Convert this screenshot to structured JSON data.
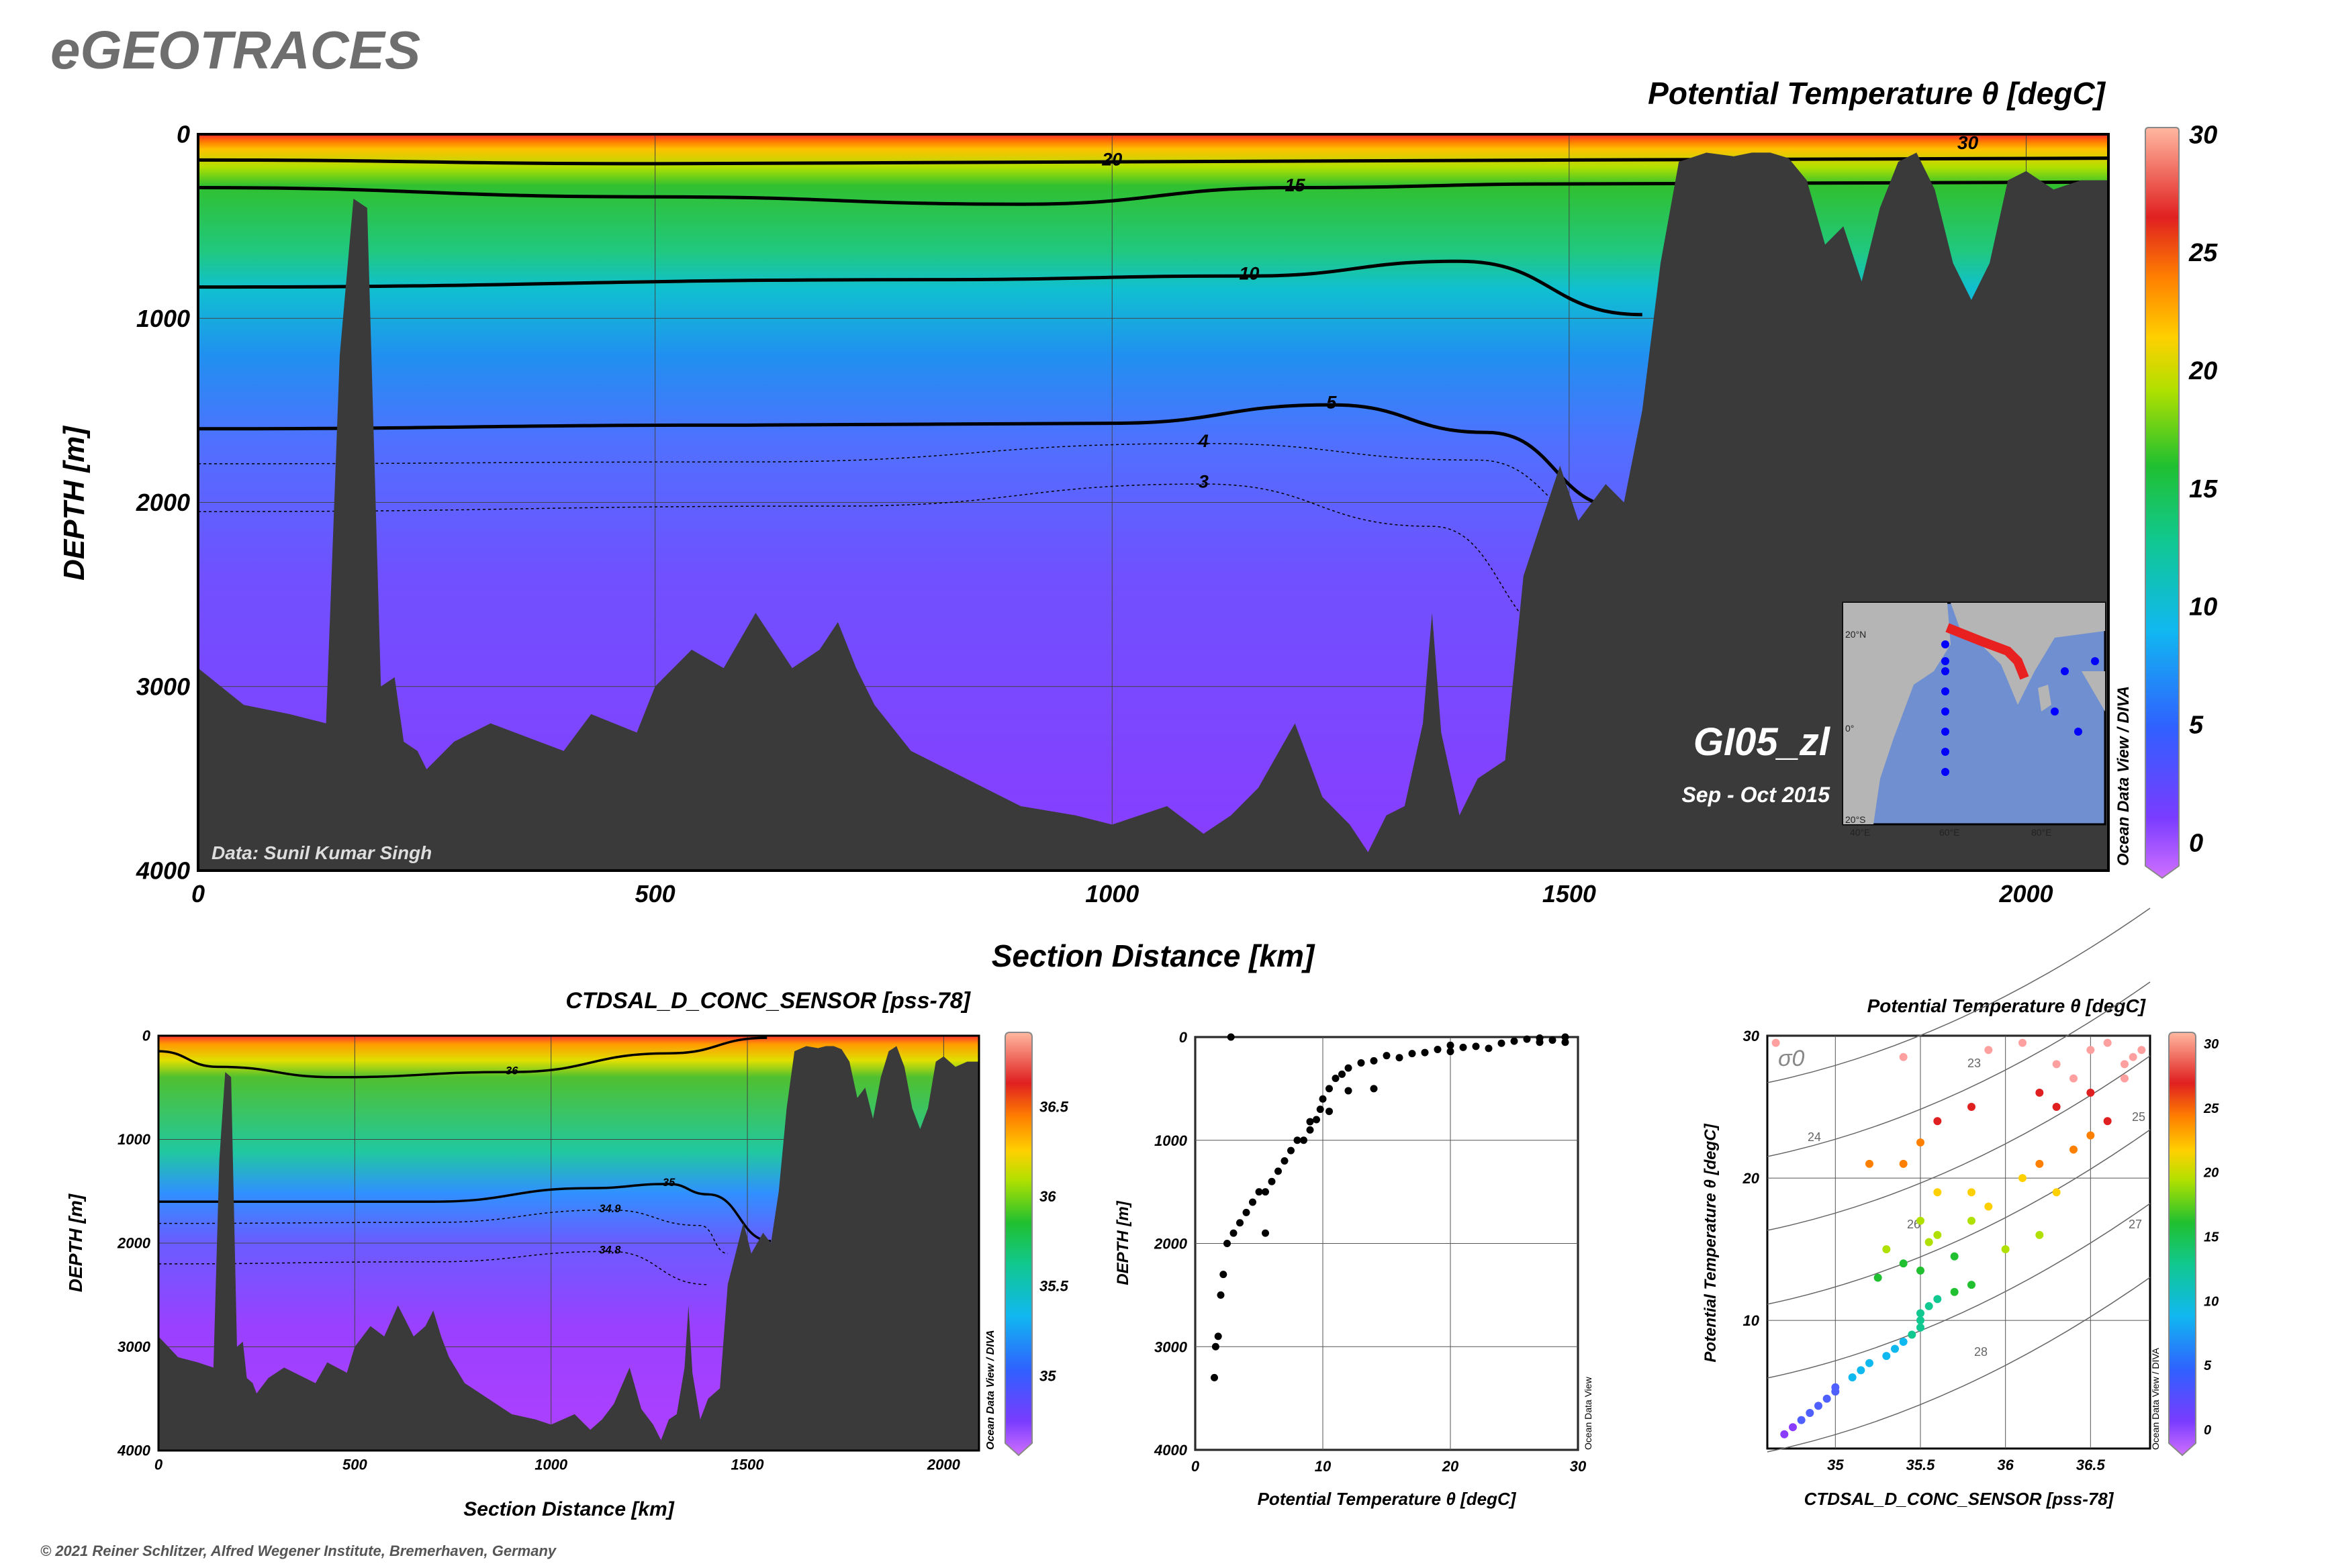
{
  "logo": "eGEOTRACES",
  "copyright": "© 2021 Reiner Schlitzer, Alfred Wegener Institute, Bremerhaven, Germany",
  "odv_credit": "Ocean Data View / DIVA",
  "odv_credit_short": "Ocean Data View",
  "colors": {
    "bathymetry": "#3a3a3a",
    "contour": "#000000",
    "grid": "#555555"
  },
  "chart_data": [
    {
      "type": "section",
      "id": "main_section",
      "title": "Potential Temperature θ [degC]",
      "xlabel": "Section Distance [km]",
      "ylabel": "DEPTH [m]",
      "xlim": [
        0,
        2090
      ],
      "ylim": [
        4000,
        0
      ],
      "x_ticks": [
        0,
        500,
        1000,
        1500,
        2000
      ],
      "y_ticks": [
        0,
        1000,
        2000,
        3000,
        4000
      ],
      "colorbar": {
        "range": [
          0,
          30
        ],
        "ticks": [
          0,
          5,
          10,
          15,
          20,
          25,
          30
        ]
      },
      "contour_labels": [
        "30",
        "20",
        "15",
        "10",
        "5",
        "4",
        "3"
      ],
      "cruise": "GI05_zl",
      "date": "Sep - Oct 2015",
      "data_credit": "Data: Sunil Kumar Singh",
      "map": {
        "lat_labels": [
          "20°N",
          "0°",
          "20°S"
        ],
        "lon_labels": [
          "40°E",
          "60°E",
          "80°E"
        ]
      },
      "contours": [
        {
          "label": "20",
          "depth": 150,
          "km": [
            0,
            500,
            1000,
            1500,
            2090
          ],
          "d": [
            140,
            160,
            150,
            140,
            130
          ]
        },
        {
          "label": "15",
          "km": [
            0,
            500,
            900,
            1200,
            1500,
            2090
          ],
          "d": [
            290,
            340,
            380,
            290,
            270,
            260
          ]
        },
        {
          "label": "10",
          "km": [
            0,
            800,
            1150,
            1380,
            1580
          ],
          "d": [
            830,
            790,
            770,
            690,
            980
          ]
        },
        {
          "label": "5",
          "km": [
            0,
            600,
            1000,
            1240,
            1410,
            1560
          ],
          "d": [
            1600,
            1580,
            1570,
            1470,
            1620,
            2030
          ]
        },
        {
          "label": "4",
          "km": [
            0,
            600,
            1100,
            1400,
            1550
          ],
          "d": [
            1790,
            1780,
            1680,
            1770,
            2140
          ]
        },
        {
          "label": "3",
          "km": [
            0,
            700,
            1100,
            1350,
            1500
          ],
          "d": [
            2050,
            2020,
            1900,
            2130,
            2750
          ]
        }
      ],
      "bathymetry": {
        "km": [
          0,
          50,
          100,
          140,
          155,
          170,
          185,
          200,
          215,
          225,
          240,
          250,
          260,
          280,
          320,
          400,
          430,
          480,
          500,
          540,
          575,
          610,
          650,
          680,
          700,
          720,
          740,
          780,
          820,
          860,
          900,
          960,
          1000,
          1060,
          1100,
          1130,
          1160,
          1200,
          1230,
          1260,
          1280,
          1300,
          1320,
          1340,
          1350,
          1360,
          1380,
          1400,
          1430,
          1450,
          1470,
          1490,
          1510,
          1540,
          1560,
          1580,
          1600,
          1620,
          1650,
          1680,
          1700,
          1720,
          1740,
          1760,
          1780,
          1800,
          1820,
          1840,
          1860,
          1880,
          1900,
          1920,
          1940,
          1960,
          1980,
          2000,
          2030,
          2060,
          2090
        ],
        "d": [
          2900,
          3100,
          3150,
          3200,
          1200,
          350,
          400,
          3000,
          2950,
          3300,
          3350,
          3450,
          3400,
          3300,
          3200,
          3350,
          3150,
          3250,
          3000,
          2800,
          2900,
          2600,
          2900,
          2800,
          2650,
          2900,
          3100,
          3350,
          3450,
          3550,
          3650,
          3700,
          3750,
          3650,
          3800,
          3700,
          3550,
          3200,
          3600,
          3750,
          3900,
          3700,
          3650,
          3200,
          2600,
          3250,
          3700,
          3500,
          3400,
          2400,
          2100,
          1800,
          2100,
          1900,
          2000,
          1500,
          700,
          150,
          100,
          120,
          100,
          100,
          130,
          250,
          600,
          500,
          800,
          400,
          150,
          100,
          300,
          700,
          900,
          700,
          250,
          200,
          300,
          250,
          250
        ]
      }
    },
    {
      "type": "section",
      "id": "salinity_section",
      "title": "CTDSAL_D_CONC_SENSOR [pss-78]",
      "xlabel": "Section Distance [km]",
      "ylabel": "DEPTH [m]",
      "xlim": [
        0,
        2090
      ],
      "ylim": [
        4000,
        0
      ],
      "x_ticks": [
        0,
        500,
        1000,
        1500,
        2000
      ],
      "y_ticks": [
        0,
        1000,
        2000,
        3000,
        4000
      ],
      "colorbar": {
        "range": [
          34.7,
          36.85
        ],
        "ticks": [
          35,
          35.5,
          36,
          36.5
        ]
      },
      "contour_labels": [
        "36",
        "35",
        "34.9",
        "34.8"
      ],
      "contours": [
        {
          "label": "36",
          "km": [
            0,
            150,
            450,
            900,
            1300,
            1550
          ],
          "d": [
            150,
            300,
            400,
            350,
            170,
            20
          ]
        },
        {
          "label": "35",
          "km": [
            0,
            700,
            1100,
            1300,
            1400,
            1560
          ],
          "d": [
            1600,
            1600,
            1470,
            1430,
            1530,
            1980
          ]
        },
        {
          "label": "34.9",
          "km": [
            0,
            700,
            1150,
            1380,
            1450
          ],
          "d": [
            1810,
            1800,
            1680,
            1830,
            2100
          ]
        },
        {
          "label": "34.8",
          "km": [
            0,
            700,
            1150,
            1400
          ],
          "d": [
            2200,
            2180,
            2080,
            2400
          ]
        }
      ]
    },
    {
      "type": "scatter",
      "id": "temp_profile",
      "xlabel": "Potential Temperature θ [degC]",
      "ylabel": "DEPTH [m]",
      "xlim": [
        0,
        30
      ],
      "ylim": [
        4000,
        0
      ],
      "x_ticks": [
        0,
        10,
        20,
        30
      ],
      "y_ticks": [
        0,
        1000,
        2000,
        3000,
        4000
      ],
      "points": [
        [
          2.8,
          0
        ],
        [
          29,
          0
        ],
        [
          28,
          30
        ],
        [
          27,
          50
        ],
        [
          26,
          20
        ],
        [
          25,
          40
        ],
        [
          24,
          60
        ],
        [
          22,
          90
        ],
        [
          21,
          100
        ],
        [
          20,
          80
        ],
        [
          19,
          120
        ],
        [
          18,
          150
        ],
        [
          17,
          160
        ],
        [
          16,
          200
        ],
        [
          15,
          180
        ],
        [
          14,
          230
        ],
        [
          13,
          250
        ],
        [
          12,
          300
        ],
        [
          11.5,
          360
        ],
        [
          11,
          400
        ],
        [
          10.5,
          500
        ],
        [
          10,
          600
        ],
        [
          9.8,
          700
        ],
        [
          9.5,
          800
        ],
        [
          9,
          900
        ],
        [
          8.5,
          1000
        ],
        [
          8,
          1000
        ],
        [
          7.5,
          1100
        ],
        [
          7,
          1200
        ],
        [
          6.5,
          1300
        ],
        [
          6,
          1400
        ],
        [
          5.5,
          1500
        ],
        [
          5,
          1500
        ],
        [
          4.5,
          1600
        ],
        [
          4,
          1700
        ],
        [
          3.5,
          1800
        ],
        [
          3,
          1900
        ],
        [
          2.5,
          2000
        ],
        [
          2.2,
          2300
        ],
        [
          2,
          2500
        ],
        [
          1.8,
          2900
        ],
        [
          1.6,
          3000
        ],
        [
          1.5,
          3300
        ],
        [
          20,
          140
        ],
        [
          23,
          110
        ],
        [
          27,
          10
        ],
        [
          29,
          50
        ],
        [
          14,
          500
        ],
        [
          12,
          520
        ],
        [
          10.5,
          720
        ],
        [
          9,
          820
        ],
        [
          5.5,
          1900
        ]
      ]
    },
    {
      "type": "scatter",
      "id": "ts_diagram",
      "title": "Potential Temperature θ [degC]",
      "xlabel": "CTDSAL_D_CONC_SENSOR [pss-78]",
      "ylabel": "Potential Temperature θ [degC]",
      "xlim": [
        34.6,
        36.85
      ],
      "ylim": [
        1,
        30
      ],
      "x_ticks": [
        35,
        35.5,
        36,
        36.5
      ],
      "y_ticks": [
        10,
        20,
        30
      ],
      "sigma_label": "σ0",
      "isopycnal_labels": [
        "23",
        "24",
        "25",
        "26",
        "27",
        "28"
      ],
      "colorbar": {
        "range": [
          0,
          30
        ],
        "ticks": [
          0,
          5,
          10,
          15,
          20,
          25,
          30
        ]
      },
      "points": [
        [
          34.65,
          29.5
        ],
        [
          34.7,
          2
        ],
        [
          34.75,
          2.5
        ],
        [
          34.8,
          3
        ],
        [
          34.85,
          3.5
        ],
        [
          34.9,
          4
        ],
        [
          34.95,
          4.5
        ],
        [
          35,
          5
        ],
        [
          35,
          5.3
        ],
        [
          35.1,
          6
        ],
        [
          35.15,
          6.5
        ],
        [
          35.2,
          7
        ],
        [
          35.3,
          7.5
        ],
        [
          35.35,
          8
        ],
        [
          35.4,
          8.5
        ],
        [
          35.45,
          9
        ],
        [
          35.5,
          9.5
        ],
        [
          35.5,
          10
        ],
        [
          35.5,
          10.5
        ],
        [
          35.55,
          11
        ],
        [
          35.6,
          11.5
        ],
        [
          35.7,
          12
        ],
        [
          35.8,
          12.5
        ],
        [
          35.3,
          15
        ],
        [
          35.25,
          13
        ],
        [
          35.4,
          14
        ],
        [
          35.5,
          13.5
        ],
        [
          35.55,
          15.5
        ],
        [
          35.6,
          16
        ],
        [
          35.7,
          14.5
        ],
        [
          35.8,
          17
        ],
        [
          35.9,
          18
        ],
        [
          36,
          15
        ],
        [
          35.5,
          17
        ],
        [
          35.6,
          19
        ],
        [
          35.8,
          19
        ],
        [
          36.2,
          16
        ],
        [
          36.3,
          19
        ],
        [
          36.1,
          20
        ],
        [
          36.2,
          21
        ],
        [
          36.4,
          22
        ],
        [
          36.5,
          23
        ],
        [
          36.6,
          24
        ],
        [
          35.2,
          21
        ],
        [
          35.4,
          21
        ],
        [
          35.5,
          22.5
        ],
        [
          35.6,
          24
        ],
        [
          35.8,
          25
        ],
        [
          36.3,
          25
        ],
        [
          36.5,
          26
        ],
        [
          36.7,
          27
        ],
        [
          35.4,
          28.5
        ],
        [
          35.9,
          29
        ],
        [
          36.1,
          29.5
        ],
        [
          36.3,
          28
        ],
        [
          36.5,
          29
        ],
        [
          36.7,
          28
        ],
        [
          36.8,
          29
        ],
        [
          36.6,
          29.5
        ],
        [
          36.75,
          28.5
        ],
        [
          36.4,
          27
        ],
        [
          36.2,
          26
        ]
      ]
    }
  ]
}
